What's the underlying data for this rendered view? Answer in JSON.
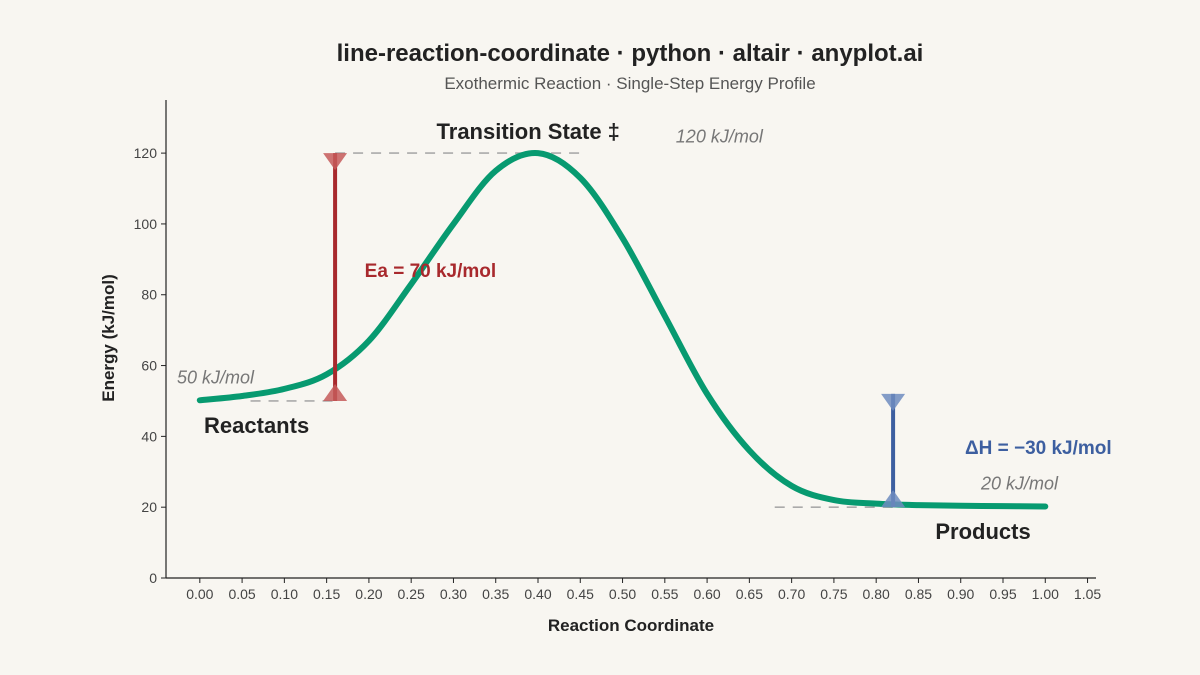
{
  "title": "line-reaction-coordinate · python · altair · anyplot.ai",
  "subtitle": "Exothermic Reaction · Single-Step Energy Profile",
  "colors": {
    "background": "#f8f6f1",
    "curve": "#079a70",
    "activation": "#a8292d",
    "activation_marker": "#c55a5a",
    "enthalpy": "#3d5fa0",
    "enthalpy_marker": "#6e8cbf",
    "reference_line": "#aaaaaa",
    "text": "#222222",
    "value_text": "#777777",
    "axis": "#222222"
  },
  "chart_data": {
    "type": "line",
    "xlabel": "Reaction Coordinate",
    "ylabel": "Energy (kJ/mol)",
    "xlim": [
      -0.04,
      1.06
    ],
    "ylim": [
      0,
      135
    ],
    "x_ticks": [
      "0.00",
      "0.05",
      "0.10",
      "0.15",
      "0.20",
      "0.25",
      "0.30",
      "0.35",
      "0.40",
      "0.45",
      "0.50",
      "0.55",
      "0.60",
      "0.65",
      "0.70",
      "0.75",
      "0.80",
      "0.85",
      "0.90",
      "0.95",
      "1.00",
      "1.05"
    ],
    "y_ticks": [
      "0",
      "20",
      "40",
      "60",
      "80",
      "100",
      "120"
    ],
    "grid": false,
    "series": [
      {
        "x": [
          0.0,
          0.05,
          0.1,
          0.15,
          0.2,
          0.25,
          0.3,
          0.35,
          0.4,
          0.45,
          0.5,
          0.55,
          0.6,
          0.65,
          0.7,
          0.75,
          0.8,
          0.85,
          0.9,
          0.95,
          1.0
        ],
        "values": [
          50.2,
          51.4,
          53.4,
          57.5,
          67,
          83,
          100,
          115,
          120,
          113,
          96,
          74,
          52,
          36,
          26,
          22,
          21,
          20.6,
          20.4,
          20.3,
          20.2
        ]
      }
    ],
    "reference_lines": [
      {
        "x_start": 0.06,
        "x_end": 0.16,
        "y": 50
      },
      {
        "x_start": 0.16,
        "x_end": 0.45,
        "y": 120
      },
      {
        "x_start": 0.68,
        "x_end": 0.82,
        "y": 20
      }
    ],
    "arrows": [
      {
        "x": 0.16,
        "y_from": 50,
        "y_to": 120,
        "label": "Ea = 70 kJ/mol",
        "label_x": 0.195,
        "label_y": 85
      },
      {
        "x": 0.82,
        "y_from": 52,
        "y_to": 20,
        "label": "ΔH = −30 kJ/mol",
        "label_x": 0.905,
        "label_y": 35
      }
    ],
    "annotations": {
      "reactants": {
        "text": "Reactants",
        "x": 0.005,
        "y": 41
      },
      "transition_state": {
        "text": "Transition State ‡",
        "x": 0.28,
        "y": 124
      },
      "products": {
        "text": "Products",
        "x": 0.87,
        "y": 11
      },
      "reactant_energy": {
        "text": "50 kJ/mol",
        "x": -0.027,
        "y": 55
      },
      "ts_energy": {
        "text": "120 kJ/mol",
        "x": 0.563,
        "y": 123
      },
      "product_energy": {
        "text": "20 kJ/mol",
        "x": 0.924,
        "y": 25
      }
    }
  }
}
